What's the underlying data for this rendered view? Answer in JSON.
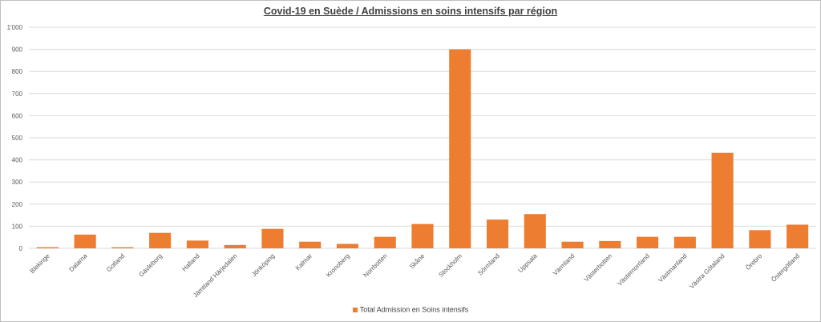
{
  "colors": {
    "bar": "#ed7d31",
    "grid": "#d9d9d9",
    "axis_text": "#595959"
  },
  "chart_data": {
    "type": "bar",
    "title": "Covid-19 en Suède / Admissions  en soins intensifs par région",
    "categories": [
      "Blekinge",
      "Dalarna",
      "Gotland",
      "Gävleborg",
      "Halland",
      "Jämtland Härjedalen",
      "Jönköping",
      "Kalmar",
      "Kronoberg",
      "Norrbotten",
      "Skåne",
      "Stockholm",
      "Sörmland",
      "Uppsala",
      "Värmland",
      "Västerbotten",
      "Västernorrland",
      "Västmanland",
      "Västra Götaland",
      "Örebro",
      "Östergötland"
    ],
    "series": [
      {
        "name": "Total Admission en Soins intensifs",
        "values": [
          5,
          62,
          5,
          70,
          35,
          15,
          88,
          30,
          20,
          52,
          110,
          900,
          130,
          155,
          30,
          33,
          52,
          52,
          432,
          82,
          107
        ]
      }
    ],
    "yticks": [
      "0",
      "100",
      "200",
      "300",
      "400",
      "500",
      "600",
      "700",
      "800",
      "900",
      "1'000"
    ],
    "ylim": [
      0,
      1000
    ],
    "grid": true,
    "legend_position": "bottom"
  }
}
